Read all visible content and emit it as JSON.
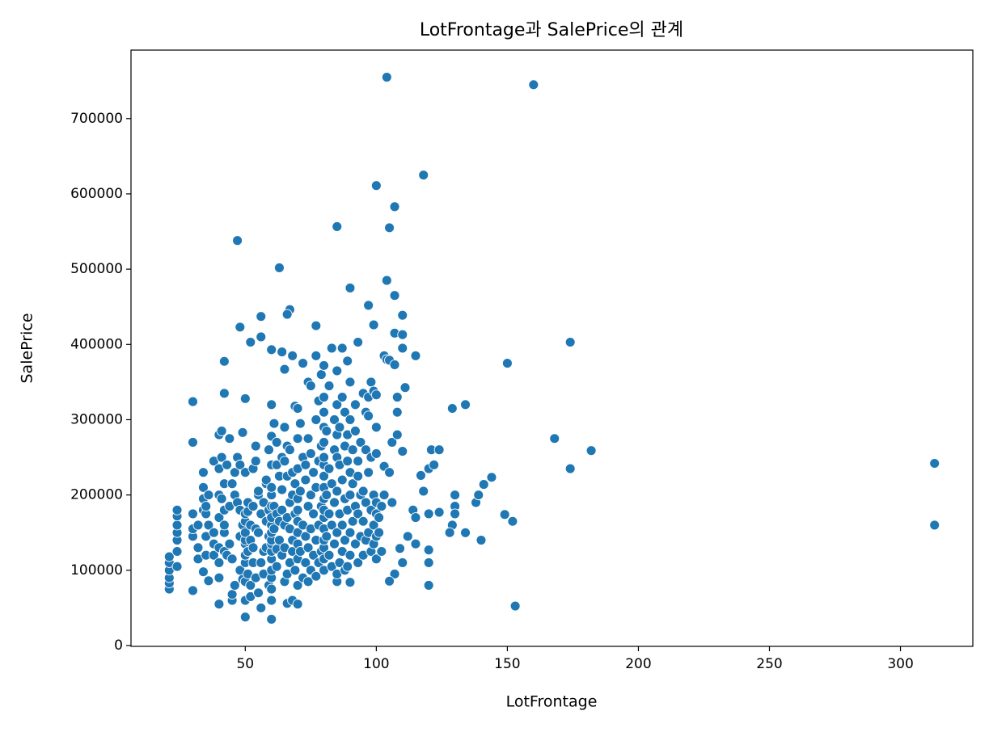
{
  "chart_data": {
    "type": "scatter",
    "title": "LotFrontage과 SalePrice의 관계",
    "x_label": "LotFrontage",
    "y_label": "SalePrice",
    "xlim": [
      6.4,
      327.6
    ],
    "ylim": [
      -1105,
      791005
    ],
    "xticks": [
      50,
      100,
      150,
      200,
      250,
      300
    ],
    "yticks": [
      0,
      100000,
      200000,
      300000,
      400000,
      500000,
      600000,
      700000
    ],
    "grid": false,
    "series": [
      {
        "color": "#1f77b4",
        "x": [
          104,
          160,
          118,
          100,
          107,
          105,
          85,
          47,
          63,
          104,
          90,
          107,
          97,
          67,
          110,
          56,
          99,
          48,
          77,
          174,
          150,
          313,
          313,
          153,
          182,
          168,
          174,
          152,
          134,
          129,
          144,
          141,
          149,
          134,
          140,
          129,
          120,
          130,
          120,
          121,
          124,
          124,
          117,
          118,
          115,
          111,
          109,
          110,
          107,
          105,
          30,
          30,
          30,
          42,
          42,
          60,
          50,
          21,
          21,
          21,
          21,
          21,
          21,
          24,
          24,
          24,
          24,
          24,
          24,
          24,
          30,
          30,
          30,
          32,
          32,
          32,
          34,
          34,
          34,
          34,
          34,
          35,
          35,
          35,
          35,
          36,
          36,
          36,
          38,
          38,
          38,
          38,
          40,
          40,
          40,
          40,
          40,
          40,
          40,
          40,
          41,
          41,
          41,
          42,
          42,
          42,
          42,
          42,
          43,
          43,
          44,
          44,
          44,
          45,
          45,
          45,
          45,
          46,
          46,
          46,
          47,
          47,
          48,
          48,
          48,
          48,
          49,
          49,
          49,
          50,
          50,
          50,
          50,
          50,
          50,
          50,
          50,
          50,
          50,
          50,
          51,
          51,
          51,
          51,
          52,
          52,
          52,
          52,
          52,
          53,
          53,
          53,
          53,
          54,
          54,
          54,
          54,
          55,
          55,
          55,
          55,
          56,
          56,
          56,
          56,
          57,
          57,
          57,
          58,
          58,
          58,
          58,
          59,
          59,
          59,
          59,
          60,
          60,
          60,
          60,
          60,
          60,
          60,
          60,
          60,
          60,
          60,
          60,
          60,
          60,
          60,
          60,
          60,
          60,
          61,
          61,
          61,
          62,
          62,
          62,
          62,
          62,
          63,
          63,
          63,
          64,
          64,
          64,
          64,
          64,
          65,
          65,
          65,
          65,
          65,
          65,
          66,
          66,
          66,
          66,
          66,
          66,
          67,
          67,
          67,
          67,
          68,
          68,
          68,
          68,
          68,
          68,
          69,
          69,
          69,
          69,
          70,
          70,
          70,
          70,
          70,
          70,
          70,
          70,
          70,
          70,
          70,
          71,
          71,
          71,
          72,
          72,
          72,
          72,
          73,
          73,
          73,
          73,
          74,
          74,
          74,
          74,
          74,
          75,
          75,
          75,
          75,
          75,
          76,
          76,
          76,
          77,
          77,
          77,
          77,
          77,
          78,
          78,
          78,
          78,
          79,
          79,
          79,
          79,
          80,
          80,
          80,
          80,
          80,
          80,
          80,
          80,
          80,
          80,
          80,
          80,
          80,
          80,
          80,
          80,
          80,
          81,
          81,
          81,
          82,
          82,
          82,
          82,
          83,
          83,
          83,
          83,
          84,
          84,
          84,
          84,
          85,
          85,
          85,
          85,
          85,
          85,
          85,
          85,
          86,
          86,
          86,
          86,
          87,
          87,
          87,
          87,
          87,
          88,
          88,
          88,
          88,
          88,
          89,
          89,
          89,
          89,
          89,
          90,
          90,
          90,
          90,
          90,
          90,
          90,
          91,
          91,
          91,
          92,
          92,
          92,
          92,
          93,
          93,
          93,
          93,
          93,
          94,
          94,
          94,
          95,
          95,
          95,
          95,
          96,
          96,
          96,
          96,
          97,
          97,
          97,
          97,
          98,
          98,
          98,
          98,
          99,
          99,
          99,
          99,
          100,
          100,
          100,
          100,
          100,
          100,
          100,
          101,
          101,
          102,
          102,
          103,
          103,
          103,
          104,
          105,
          105,
          106,
          106,
          107,
          107,
          108,
          108,
          108,
          110,
          110,
          110,
          112,
          114,
          115,
          115,
          120,
          120,
          120,
          122,
          130,
          130,
          128,
          138,
          139
        ],
        "values": [
          755000,
          745000,
          625000,
          611000,
          582933,
          555000,
          556581,
          538000,
          501837,
          485000,
          475000,
          465000,
          451950,
          446261,
          438780,
          437154,
          426000,
          423000,
          424870,
          403000,
          375000,
          242000,
          160000,
          52500,
          259000,
          275000,
          235000,
          164990,
          320000,
          315000,
          223500,
          214000,
          174000,
          149900,
          140000,
          160000,
          80000,
          185000,
          127000,
          260000,
          260000,
          177000,
          226000,
          205000,
          385000,
          342643,
          129000,
          110000,
          95000,
          85500,
          324000,
          270000,
          73000,
          377500,
          335000,
          34900,
          37900,
          75000,
          83000,
          90000,
          100000,
          110000,
          118000,
          105000,
          125000,
          140000,
          150000,
          160000,
          172000,
          180000,
          145000,
          155000,
          175000,
          130000,
          160000,
          115000,
          195000,
          210000,
          230000,
          98000,
          180000,
          145000,
          175000,
          185000,
          120000,
          86000,
          160000,
          200000,
          120000,
          150000,
          245000,
          135000,
          55000,
          90000,
          110000,
          130000,
          170000,
          200000,
          235000,
          280000,
          285000,
          250000,
          195000,
          150000,
          160000,
          180000,
          215000,
          125000,
          240000,
          120000,
          185000,
          275000,
          135000,
          60000,
          68000,
          115000,
          215000,
          80000,
          200000,
          230000,
          190000,
          250000,
          100000,
          145000,
          180000,
          240000,
          283000,
          88000,
          160000,
          60000,
          85000,
          110000,
          120000,
          135000,
          140000,
          150000,
          165000,
          175000,
          230000,
          328000,
          95000,
          125000,
          178000,
          190000,
          65000,
          80000,
          140000,
          160000,
          403000,
          110000,
          130000,
          185000,
          235000,
          90000,
          155000,
          265000,
          245000,
          70000,
          150000,
          200000,
          205000,
          50000,
          110000,
          175000,
          410000,
          95000,
          125000,
          190000,
          130000,
          165000,
          215000,
          220000,
          80000,
          145000,
          180000,
          260000,
          60000,
          75000,
          90000,
          100000,
          115000,
          125000,
          135000,
          140000,
          150000,
          160000,
          170000,
          185000,
          200000,
          210000,
          240000,
          278000,
          320000,
          393000,
          155000,
          185000,
          295000,
          105000,
          128000,
          175000,
          240000,
          270000,
          140000,
          165000,
          225000,
          120000,
          180000,
          250000,
          390000,
          207000,
          85000,
          130000,
          160000,
          245000,
          290000,
          367000,
          56000,
          95000,
          170000,
          225000,
          265000,
          440000,
          110000,
          155000,
          190000,
          260000,
          60000,
          125000,
          140000,
          200000,
          230000,
          385000,
          100000,
          175000,
          215000,
          318000,
          55000,
          80000,
          115000,
          135000,
          150000,
          165000,
          180000,
          195000,
          235000,
          275000,
          315000,
          125000,
          205000,
          295000,
          90000,
          160000,
          250000,
          375000,
          110000,
          145000,
          220000,
          240000,
          85000,
          130000,
          185000,
          275000,
          350000,
          100000,
          155000,
          200000,
          255000,
          345000,
          120000,
          175000,
          230000,
          92000,
          140000,
          210000,
          300000,
          385000,
          110000,
          160000,
          245000,
          325000,
          125000,
          185000,
          265000,
          360000,
          100000,
          115000,
          130000,
          140000,
          155000,
          170000,
          180000,
          195000,
          210000,
          225000,
          240000,
          250000,
          270000,
          290000,
          310000,
          330000,
          372000,
          145000,
          200000,
          285000,
          120000,
          175000,
          235000,
          345000,
          105000,
          160000,
          215000,
          395000,
          135000,
          190000,
          260000,
          300000,
          85000,
          95000,
          150000,
          205000,
          250000,
          280000,
          320000,
          365000,
          110000,
          175000,
          240000,
          290000,
          125000,
          160000,
          220000,
          330000,
          395000,
          100000,
          140000,
          195000,
          265000,
          310000,
          105000,
          180000,
          245000,
          280000,
          378000,
          84000,
          120000,
          150000,
          200000,
          230000,
          300000,
          350000,
          165000,
          215000,
          260000,
          135000,
          185000,
          285000,
          320000,
          110000,
          175000,
          225000,
          245000,
          403000,
          145000,
          200000,
          270000,
          120000,
          165000,
          205000,
          335000,
          140000,
          190000,
          260000,
          310000,
          150000,
          230000,
          330000,
          305000,
          125000,
          180000,
          250000,
          350000,
          135000,
          160000,
          200000,
          338000,
          115000,
          145000,
          175000,
          190000,
          255000,
          290000,
          333000,
          170000,
          150000,
          185000,
          125000,
          200000,
          385000,
          238000,
          380000,
          230000,
          379000,
          190000,
          270000,
          373000,
          415000,
          280000,
          310000,
          330000,
          258000,
          395000,
          413000,
          145000,
          180000,
          170000,
          135000,
          110000,
          175000,
          235000,
          240000,
          175000,
          200000,
          150000,
          190000,
          200000
        ]
      }
    ]
  }
}
